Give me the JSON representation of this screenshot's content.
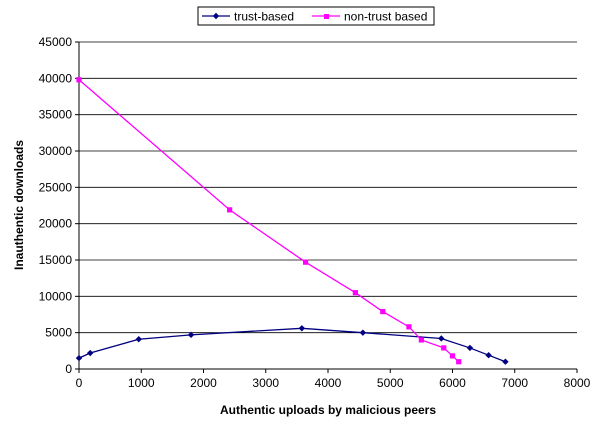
{
  "chart_data": {
    "type": "line",
    "title": "",
    "xlabel": "Authentic uploads by malicious peers",
    "ylabel": "Inauthentic downloads",
    "xlim": [
      0,
      8000
    ],
    "ylim": [
      0,
      45000
    ],
    "x_ticks": [
      "0",
      "1000",
      "2000",
      "3000",
      "4000",
      "5000",
      "6000",
      "7000",
      "8000"
    ],
    "y_ticks": [
      "0",
      "5000",
      "10000",
      "15000",
      "20000",
      "25000",
      "30000",
      "35000",
      "40000",
      "45000"
    ],
    "grid": "horizontal",
    "legend_position": "top",
    "series": [
      {
        "name": "trust-based",
        "color": "#000080",
        "marker": "diamond",
        "points": [
          [
            0,
            1500
          ],
          [
            180,
            2200
          ],
          [
            960,
            4100
          ],
          [
            1800,
            4700
          ],
          [
            3580,
            5600
          ],
          [
            4560,
            5000
          ],
          [
            5820,
            4200
          ],
          [
            6280,
            2900
          ],
          [
            6580,
            1900
          ],
          [
            6850,
            1000
          ]
        ]
      },
      {
        "name": "non-trust based",
        "color": "#ff00ff",
        "marker": "square",
        "points": [
          [
            0,
            39800
          ],
          [
            2420,
            21900
          ],
          [
            3640,
            14700
          ],
          [
            4440,
            10500
          ],
          [
            4880,
            7900
          ],
          [
            5300,
            5800
          ],
          [
            5500,
            4000
          ],
          [
            5860,
            2900
          ],
          [
            6000,
            1800
          ],
          [
            6100,
            1000
          ]
        ]
      }
    ]
  }
}
